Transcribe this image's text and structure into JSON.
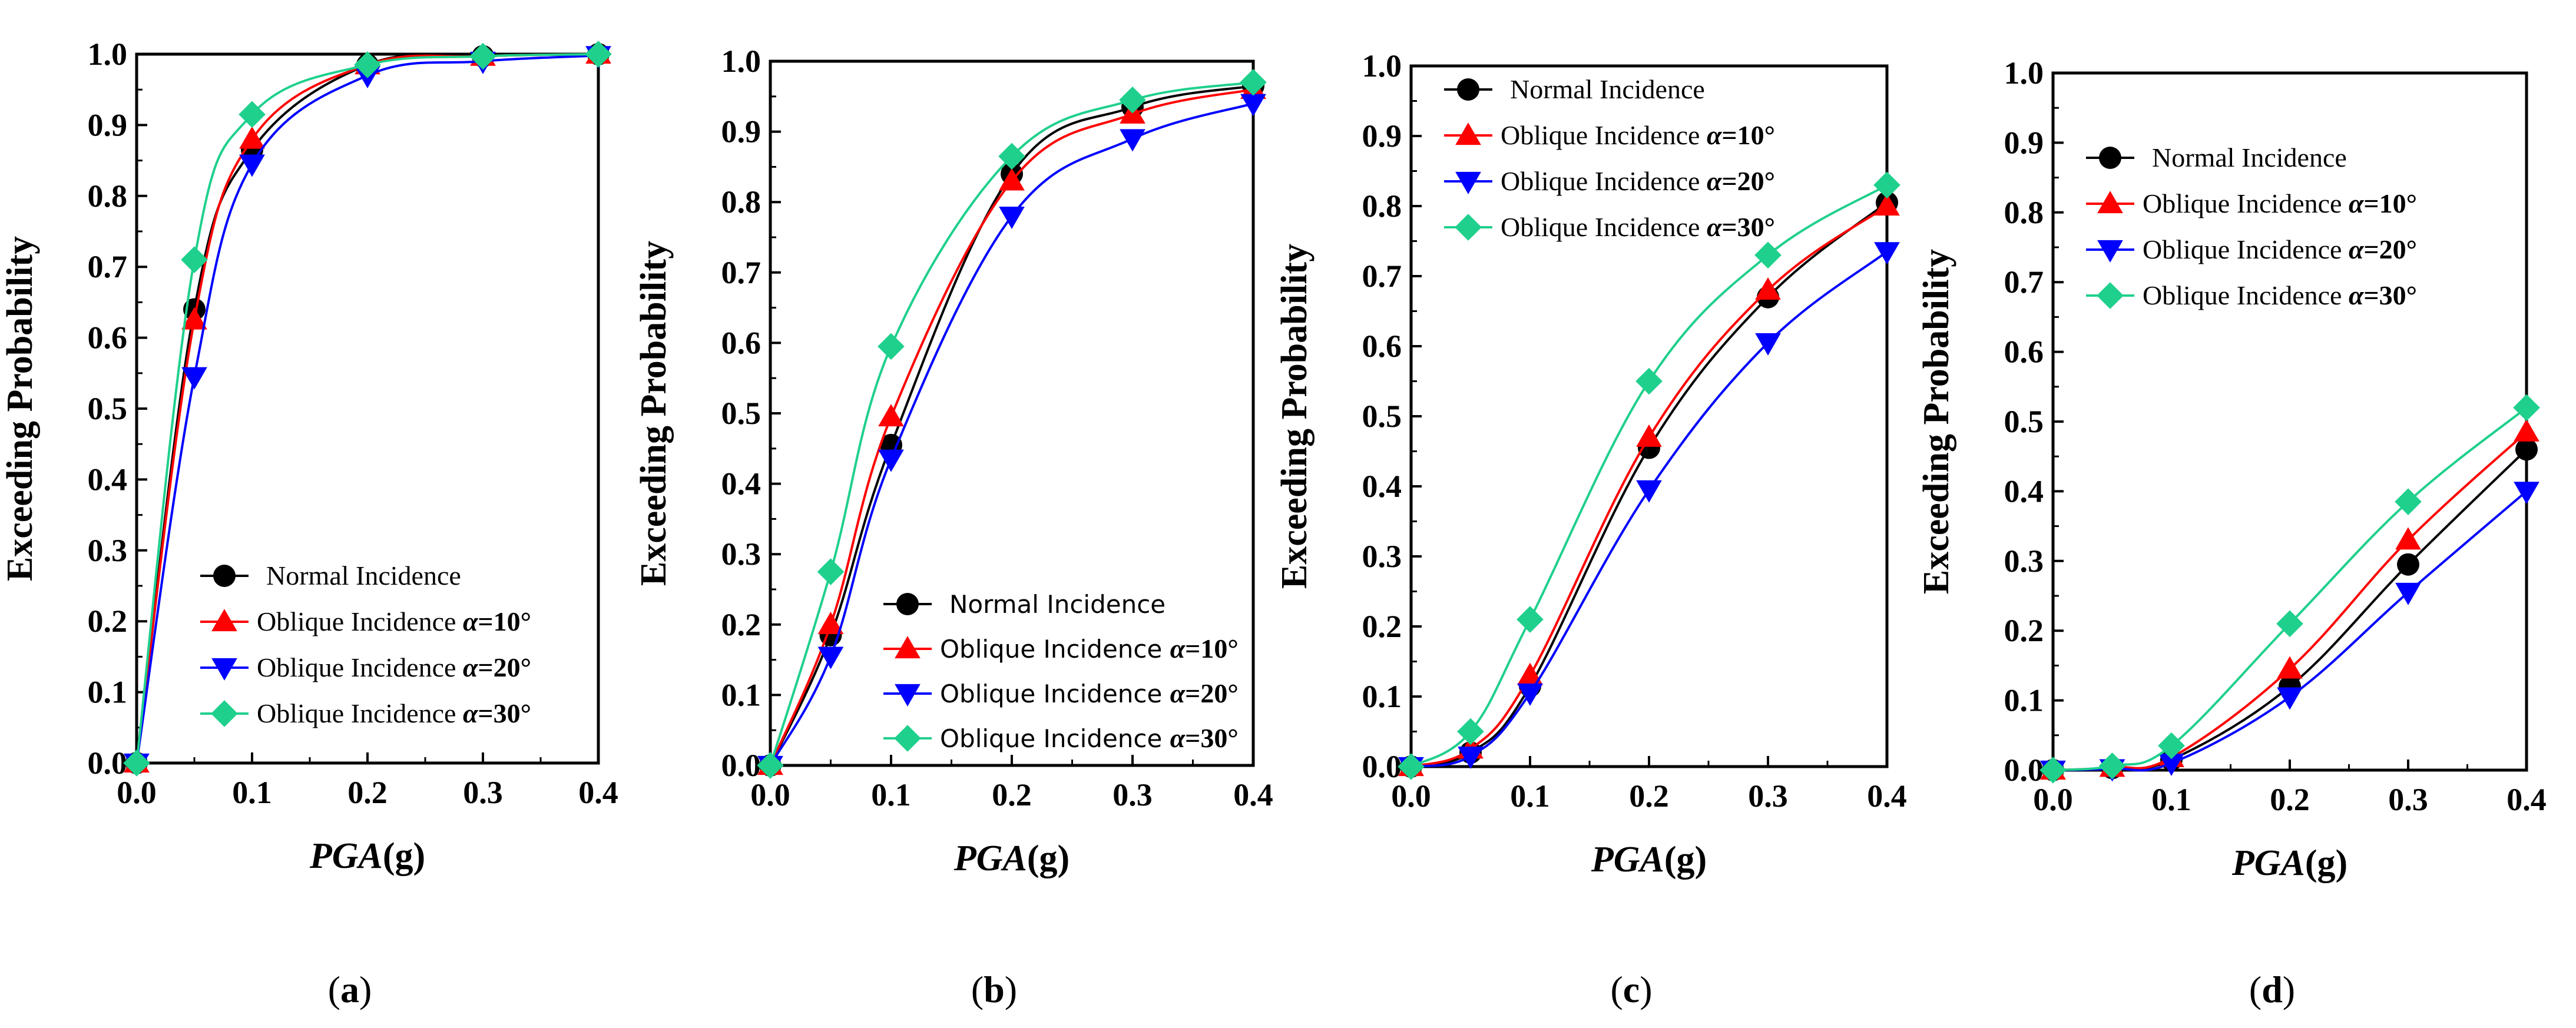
{
  "colors": {
    "normal": "#000000",
    "alpha10": "#ff0000",
    "alpha20": "#0000ff",
    "alpha30": "#1fd08c",
    "axis": "#000000"
  },
  "chart_data": [
    {
      "id": "a",
      "type": "line",
      "subplot_label": "(a)",
      "subplot_letter": "a",
      "xlabel": "PGA",
      "xlabel_italic": "PGA",
      "xlabel_unit": "(g)",
      "ylabel": "Exceeding Probability",
      "xlim": [
        0,
        0.4
      ],
      "ylim": [
        0,
        1.0
      ],
      "xticks": [
        "0.0",
        "0.1",
        "0.2",
        "0.3",
        "0.4"
      ],
      "yticks": [
        "0.0",
        "0.1",
        "0.2",
        "0.3",
        "0.4",
        "0.5",
        "0.6",
        "0.7",
        "0.8",
        "0.9",
        "1.0"
      ],
      "legend_position": "lower-right",
      "x": [
        0,
        0.05,
        0.1,
        0.2,
        0.3,
        0.4
      ],
      "series": [
        {
          "name": "Normal Incidence",
          "marker": "circle",
          "values": [
            0.0,
            0.64,
            0.865,
            0.985,
            0.997,
            1.0
          ]
        },
        {
          "name": "Oblique Incidence α=10°",
          "prefix": "Oblique Incidence ",
          "alpha": "α",
          "angle": "=10°",
          "marker": "triangle-up",
          "values": [
            0.0,
            0.625,
            0.88,
            0.985,
            0.997,
            1.0
          ]
        },
        {
          "name": "Oblique Incidence α=20°",
          "prefix": "Oblique Incidence ",
          "alpha": "α",
          "angle": "=20°",
          "marker": "triangle-down",
          "values": [
            0.0,
            0.545,
            0.845,
            0.97,
            0.99,
            0.998
          ]
        },
        {
          "name": "Oblique Incidence α=30°",
          "prefix": "Oblique Incidence ",
          "alpha": "α",
          "angle": "=30°",
          "marker": "diamond",
          "values": [
            0.0,
            0.71,
            0.915,
            0.985,
            0.997,
            1.0
          ]
        }
      ]
    },
    {
      "id": "b",
      "type": "line",
      "subplot_label": "(b)",
      "subplot_letter": "b",
      "xlabel": "PGA",
      "xlabel_italic": "PGA",
      "xlabel_unit": "(g)",
      "ylabel": "Exceeding Probability",
      "xlim": [
        0,
        0.4
      ],
      "ylim": [
        0,
        1.0
      ],
      "xticks": [
        "0.0",
        "0.1",
        "0.2",
        "0.3",
        "0.4"
      ],
      "yticks": [
        "0.0",
        "0.1",
        "0.2",
        "0.3",
        "0.4",
        "0.5",
        "0.6",
        "0.7",
        "0.8",
        "0.9",
        "1.0"
      ],
      "legend_position": "lower-right",
      "x": [
        0,
        0.05,
        0.1,
        0.2,
        0.3,
        0.4
      ],
      "series": [
        {
          "name": "Normal Incidence",
          "marker": "circle",
          "values": [
            0.0,
            0.185,
            0.455,
            0.84,
            0.935,
            0.965
          ]
        },
        {
          "name": "Oblique Incidence α=10°",
          "prefix": "Oblique Incidence ",
          "alpha": "α",
          "angle": "=10°",
          "marker": "triangle-up",
          "values": [
            0.0,
            0.2,
            0.495,
            0.83,
            0.925,
            0.96
          ]
        },
        {
          "name": "Oblique Incidence α=20°",
          "prefix": "Oblique Incidence ",
          "alpha": "α",
          "angle": "=20°",
          "marker": "triangle-down",
          "values": [
            0.0,
            0.155,
            0.435,
            0.78,
            0.89,
            0.94
          ]
        },
        {
          "name": "Oblique Incidence α=30°",
          "prefix": "Oblique Incidence ",
          "alpha": "α",
          "angle": "=30°",
          "marker": "diamond",
          "values": [
            0.0,
            0.275,
            0.595,
            0.865,
            0.945,
            0.97
          ]
        }
      ]
    },
    {
      "id": "c",
      "type": "line",
      "subplot_label": "(c)",
      "subplot_letter": "c",
      "xlabel": "PGA",
      "xlabel_italic": "PGA",
      "xlabel_unit": "(g)",
      "ylabel": "Exceeding Probability",
      "xlim": [
        0,
        0.4
      ],
      "ylim": [
        0,
        1.0
      ],
      "xticks": [
        "0.0",
        "0.1",
        "0.2",
        "0.3",
        "0.4"
      ],
      "yticks": [
        "0.0",
        "0.1",
        "0.2",
        "0.3",
        "0.4",
        "0.5",
        "0.6",
        "0.7",
        "0.8",
        "0.9",
        "1.0"
      ],
      "legend_position": "upper-left",
      "x": [
        0,
        0.05,
        0.1,
        0.2,
        0.3,
        0.4
      ],
      "series": [
        {
          "name": "Normal Incidence",
          "marker": "circle",
          "values": [
            0.0,
            0.02,
            0.115,
            0.455,
            0.67,
            0.805
          ]
        },
        {
          "name": "Oblique Incidence α=10°",
          "prefix": "Oblique Incidence ",
          "alpha": "α",
          "angle": "=10°",
          "marker": "triangle-up",
          "values": [
            0.0,
            0.025,
            0.13,
            0.47,
            0.68,
            0.8
          ]
        },
        {
          "name": "Oblique Incidence α=20°",
          "prefix": "Oblique Incidence ",
          "alpha": "α",
          "angle": "=20°",
          "marker": "triangle-down",
          "values": [
            0.0,
            0.015,
            0.105,
            0.395,
            0.605,
            0.735
          ]
        },
        {
          "name": "Oblique Incidence α=30°",
          "prefix": "Oblique Incidence ",
          "alpha": "α",
          "angle": "=30°",
          "marker": "diamond",
          "values": [
            0.0,
            0.05,
            0.21,
            0.55,
            0.73,
            0.83
          ]
        }
      ]
    },
    {
      "id": "d",
      "type": "line",
      "subplot_label": "(d)",
      "subplot_letter": "d",
      "xlabel": "PGA",
      "xlabel_italic": "PGA",
      "xlabel_unit": "(g)",
      "ylabel": "Exceeding Probability",
      "xlim": [
        0,
        0.4
      ],
      "ylim": [
        0,
        1.0
      ],
      "xticks": [
        "0.0",
        "0.1",
        "0.2",
        "0.3",
        "0.4"
      ],
      "yticks": [
        "0.0",
        "0.1",
        "0.2",
        "0.3",
        "0.4",
        "0.5",
        "0.6",
        "0.7",
        "0.8",
        "0.9",
        "1.0"
      ],
      "legend_position": "upper-left",
      "x": [
        0,
        0.05,
        0.1,
        0.2,
        0.3,
        0.4
      ],
      "series": [
        {
          "name": "Normal Incidence",
          "marker": "circle",
          "values": [
            0.0,
            0.003,
            0.015,
            0.12,
            0.295,
            0.46
          ]
        },
        {
          "name": "Oblique Incidence α=10°",
          "prefix": "Oblique Incidence ",
          "alpha": "α",
          "angle": "=10°",
          "marker": "triangle-up",
          "values": [
            0.0,
            0.004,
            0.018,
            0.145,
            0.33,
            0.485
          ]
        },
        {
          "name": "Oblique Incidence α=20°",
          "prefix": "Oblique Incidence ",
          "alpha": "α",
          "angle": "=20°",
          "marker": "triangle-down",
          "values": [
            0.0,
            0.002,
            0.01,
            0.105,
            0.255,
            0.4
          ]
        },
        {
          "name": "Oblique Incidence α=30°",
          "prefix": "Oblique Incidence ",
          "alpha": "α",
          "angle": "=30°",
          "marker": "diamond",
          "values": [
            0.0,
            0.006,
            0.035,
            0.21,
            0.385,
            0.52
          ]
        }
      ]
    }
  ]
}
